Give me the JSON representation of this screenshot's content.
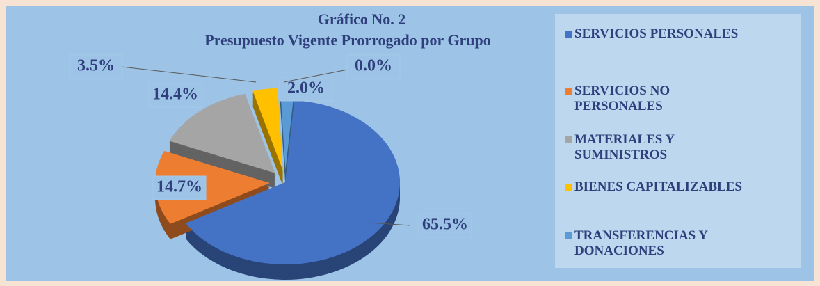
{
  "chart_data": {
    "type": "pie",
    "title": "Gráfico No. 2",
    "subtitle": "Presupuesto  Vigente  Prorrogado por Grupo",
    "categories": [
      "SERVICIOS PERSONALES",
      "SERVICIOS NO PERSONALES",
      "MATERIALES Y SUMINISTROS",
      "BIENES CAPITALIZABLES",
      "TRANSFERENCIAS Y DONACIONES",
      null
    ],
    "values": [
      65.5,
      14.7,
      14.4,
      3.5,
      2.0,
      0.0
    ],
    "value_labels": [
      "65.5%",
      "14.7%",
      "14.4%",
      "3.5%",
      "2.0%",
      "0.0%"
    ],
    "colors": [
      "#4472c4",
      "#ed7d31",
      "#a5a5a5",
      "#ffc000",
      "#5b9bd5",
      "#264478"
    ],
    "legend": "right"
  }
}
